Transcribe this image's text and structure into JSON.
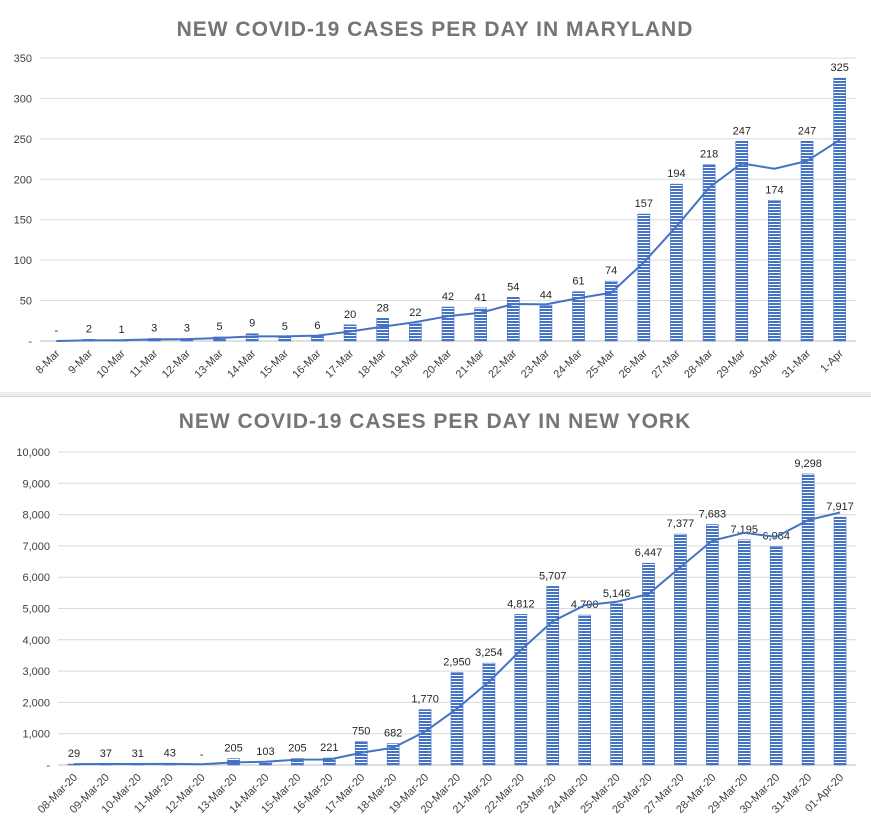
{
  "chart_data": [
    {
      "type": "bar",
      "title": "NEW COVID-19 CASES PER DAY IN MARYLAND",
      "categories": [
        "8-Mar",
        "9-Mar",
        "10-Mar",
        "11-Mar",
        "12-Mar",
        "13-Mar",
        "14-Mar",
        "15-Mar",
        "16-Mar",
        "17-Mar",
        "18-Mar",
        "19-Mar",
        "20-Mar",
        "21-Mar",
        "22-Mar",
        "23-Mar",
        "24-Mar",
        "25-Mar",
        "26-Mar",
        "27-Mar",
        "28-Mar",
        "29-Mar",
        "30-Mar",
        "31-Mar",
        "1-Apr"
      ],
      "values": [
        0,
        2,
        1,
        3,
        3,
        5,
        9,
        5,
        6,
        20,
        28,
        22,
        42,
        41,
        54,
        44,
        61,
        74,
        157,
        194,
        218,
        247,
        174,
        247,
        325
      ],
      "data_labels": [
        "-",
        "2",
        "1",
        "3",
        "3",
        "5",
        "9",
        "5",
        "6",
        "20",
        "28",
        "22",
        "42",
        "41",
        "54",
        "44",
        "61",
        "74",
        "157",
        "194",
        "218",
        "247",
        "174",
        "247",
        "325"
      ],
      "trendline": [
        0,
        0.7,
        1.0,
        2.0,
        2.3,
        3.7,
        5.7,
        5.7,
        6.7,
        11.7,
        17.7,
        23.3,
        30.7,
        35.0,
        45.7,
        45.3,
        53.0,
        59.7,
        97.3,
        141.7,
        189.7,
        219.7,
        213.0,
        222.7,
        248.7
      ],
      "yticks": [
        0,
        50,
        100,
        150,
        200,
        250,
        300,
        350
      ],
      "ytick_labels": [
        "-",
        "50",
        "100",
        "150",
        "200",
        "250",
        "300",
        "350"
      ],
      "ylim": [
        0,
        350
      ],
      "grid": true,
      "legend": "none",
      "bar_color": "#4472c4",
      "line_color": "#4472c4"
    },
    {
      "type": "bar",
      "title": "NEW COVID-19 CASES PER DAY IN NEW YORK",
      "categories": [
        "08-Mar-20",
        "09-Mar-20",
        "10-Mar-20",
        "11-Mar-20",
        "12-Mar-20",
        "13-Mar-20",
        "14-Mar-20",
        "15-Mar-20",
        "16-Mar-20",
        "17-Mar-20",
        "18-Mar-20",
        "19-Mar-20",
        "20-Mar-20",
        "21-Mar-20",
        "22-Mar-20",
        "23-Mar-20",
        "24-Mar-20",
        "25-Mar-20",
        "26-Mar-20",
        "27-Mar-20",
        "28-Mar-20",
        "29-Mar-20",
        "30-Mar-20",
        "31-Mar-20",
        "01-Apr-20"
      ],
      "values": [
        29,
        37,
        31,
        43,
        0,
        205,
        103,
        205,
        221,
        750,
        682,
        1770,
        2950,
        3254,
        4812,
        5707,
        4790,
        5146,
        6447,
        7377,
        7683,
        7195,
        6984,
        9298,
        7917
      ],
      "data_labels": [
        "29",
        "37",
        "31",
        "43",
        "-",
        "205",
        "103",
        "205",
        "221",
        "750",
        "682",
        "1,770",
        "2,950",
        "3,254",
        "4,812",
        "5,707",
        "4,790",
        "5,146",
        "6,447",
        "7,377",
        "7,683",
        "7,195",
        "6,984",
        "9,298",
        "7,917"
      ],
      "trendline": [
        29,
        33,
        32.3,
        37,
        24.7,
        82.7,
        102.7,
        171,
        176.3,
        392,
        551,
        1067.3,
        1800.7,
        2658,
        3672,
        4591,
        5103,
        5214.3,
        5461,
        6323.3,
        7169,
        7418.3,
        7287.3,
        7825.7,
        8066.3
      ],
      "yticks": [
        0,
        1000,
        2000,
        3000,
        4000,
        5000,
        6000,
        7000,
        8000,
        9000,
        10000
      ],
      "ytick_labels": [
        "-",
        "1,000",
        "2,000",
        "3,000",
        "4,000",
        "5,000",
        "6,000",
        "7,000",
        "8,000",
        "9,000",
        "10,000"
      ],
      "ylim": [
        0,
        10000
      ],
      "grid": true,
      "legend": "none",
      "bar_color": "#4472c4",
      "line_color": "#4472c4"
    }
  ]
}
